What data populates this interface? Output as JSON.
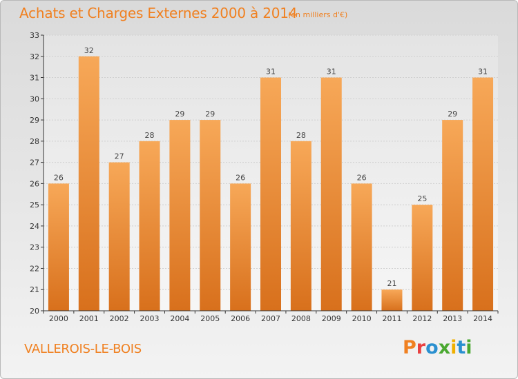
{
  "header": {
    "title": "Achats et Charges Externes 2000 à 2014",
    "unit": "(en milliers d'€)"
  },
  "footer": {
    "place": "VALLEROIS-LE-BOIS",
    "logo": [
      "P",
      "r",
      "o",
      "x",
      "i",
      "t",
      "i"
    ],
    "logo_colors": [
      "#f08020",
      "#e84040",
      "#2a90d0",
      "#4aa830",
      "#f0b000",
      "#2a90d0",
      "#4aa830"
    ]
  },
  "colors": {
    "bar_light": "#f7a858",
    "bar_dark": "#d8701c",
    "text": "#f08020",
    "axis": "#333333"
  },
  "chart_data": {
    "type": "bar",
    "title": "Achats et Charges Externes 2000 à 2014",
    "categories": [
      "2000",
      "2001",
      "2002",
      "2003",
      "2004",
      "2005",
      "2006",
      "2007",
      "2008",
      "2009",
      "2010",
      "2011",
      "2012",
      "2013",
      "2014"
    ],
    "values": [
      26,
      32,
      27,
      28,
      29,
      29,
      26,
      31,
      28,
      31,
      26,
      21,
      25,
      29,
      31
    ],
    "ylim": [
      20,
      33
    ],
    "yticks": [
      20,
      21,
      22,
      23,
      24,
      25,
      26,
      27,
      28,
      29,
      30,
      31,
      32,
      33
    ],
    "grid": true,
    "data_labels": true
  }
}
